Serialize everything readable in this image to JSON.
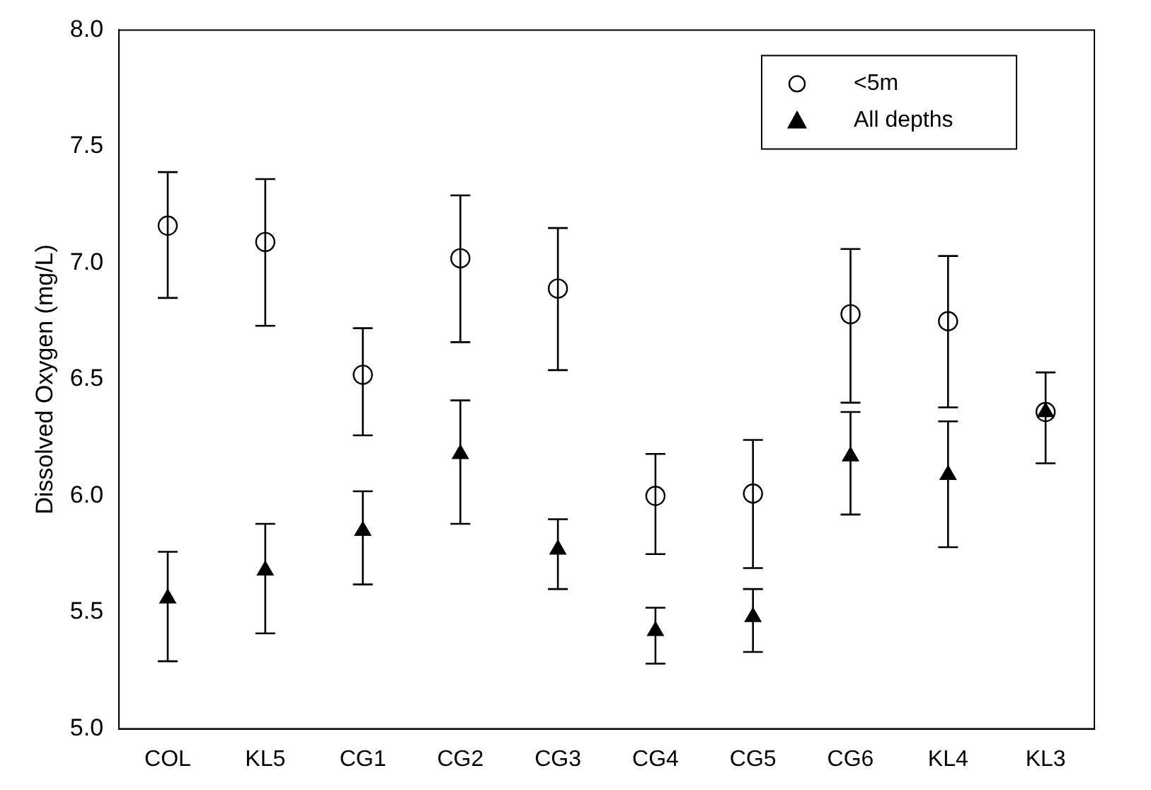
{
  "chart_data": {
    "type": "scatter",
    "ylabel": "Dissolved Oxygen (mg/L)",
    "categories": [
      "COL",
      "KL5",
      "CG1",
      "CG2",
      "CG3",
      "CG4",
      "CG5",
      "CG6",
      "KL4",
      "KL3"
    ],
    "ylim": [
      5,
      8
    ],
    "yticks": [
      {
        "value": 5,
        "label": "5.0"
      },
      {
        "value": 5.5,
        "label": "5.5"
      },
      {
        "value": 6,
        "label": "6.0"
      },
      {
        "value": 6.5,
        "label": "6.5"
      },
      {
        "value": 7,
        "label": "7.0"
      },
      {
        "value": 7.5,
        "label": "7.5"
      },
      {
        "value": 8,
        "label": "8.0"
      }
    ],
    "grid": false,
    "legend": "top right",
    "series": [
      {
        "name": "<5m",
        "color": "#000000",
        "marker": "circle",
        "values": [
          7.16,
          7.09,
          6.52,
          7.02,
          6.89,
          6.0,
          6.01,
          6.78,
          6.75,
          6.36
        ],
        "errors": [
          [
            6.85,
            7.39
          ],
          [
            6.73,
            7.36
          ],
          [
            6.26,
            6.72
          ],
          [
            6.66,
            7.29
          ],
          [
            6.54,
            7.15
          ],
          [
            5.75,
            6.18
          ],
          [
            5.69,
            6.24
          ],
          [
            6.4,
            7.06
          ],
          [
            6.38,
            7.03
          ],
          null
        ]
      },
      {
        "name": "All depths",
        "color": "#000000",
        "marker": "triangle",
        "values": [
          5.56,
          5.68,
          5.85,
          6.18,
          5.77,
          5.42,
          5.48,
          6.17,
          6.09,
          6.36
        ],
        "errors": [
          [
            5.29,
            5.76
          ],
          [
            5.41,
            5.88
          ],
          [
            5.62,
            6.02
          ],
          [
            5.88,
            6.41
          ],
          [
            5.6,
            5.9
          ],
          [
            5.28,
            5.52
          ],
          [
            5.33,
            5.6
          ],
          [
            5.92,
            6.36
          ],
          [
            5.78,
            6.32
          ],
          [
            6.14,
            6.53
          ]
        ]
      }
    ]
  }
}
